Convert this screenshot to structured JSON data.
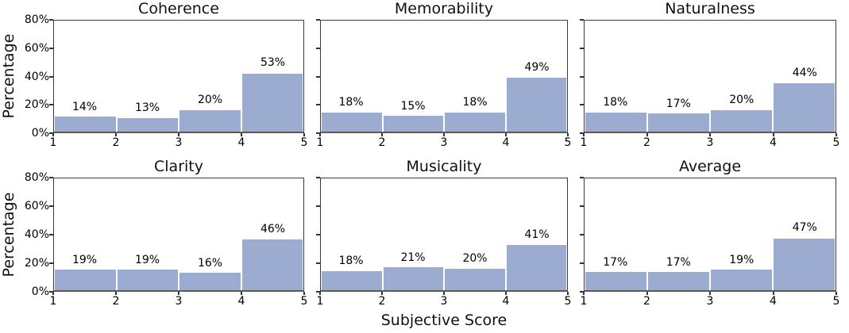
{
  "figure": {
    "xlabel": "Subjective Score",
    "ylabel": "Percentage",
    "x_tick_labels": [
      "1",
      "2",
      "3",
      "4",
      "5"
    ],
    "y_tick_labels": [
      "0%",
      "20%",
      "40%",
      "60%",
      "80%"
    ],
    "colors": {
      "bar_fill": "#9cabd0",
      "bar_edge": "#ffffff",
      "spine": "#3a3a3a",
      "bottom_spine": "#5a5a5a",
      "text": "#000000"
    }
  },
  "chart_data": [
    {
      "type": "bar",
      "title": "Coherence",
      "categories": [
        "1-2",
        "2-3",
        "3-4",
        "4-5"
      ],
      "values": [
        14,
        13,
        20,
        53
      ],
      "labels": [
        "14%",
        "13%",
        "20%",
        "53%"
      ],
      "unit": "%",
      "xlim": [
        1,
        5
      ],
      "ylim": [
        0,
        80
      ],
      "bar_axis_scale": 0.8,
      "grid": false
    },
    {
      "type": "bar",
      "title": "Memorability",
      "categories": [
        "1-2",
        "2-3",
        "3-4",
        "4-5"
      ],
      "values": [
        18,
        15,
        18,
        49
      ],
      "labels": [
        "18%",
        "15%",
        "18%",
        "49%"
      ],
      "unit": "%",
      "xlim": [
        1,
        5
      ],
      "ylim": [
        0,
        80
      ],
      "bar_axis_scale": 0.8,
      "grid": false
    },
    {
      "type": "bar",
      "title": "Naturalness",
      "categories": [
        "1-2",
        "2-3",
        "3-4",
        "4-5"
      ],
      "values": [
        18,
        17,
        20,
        44
      ],
      "labels": [
        "18%",
        "17%",
        "20%",
        "44%"
      ],
      "unit": "%",
      "xlim": [
        1,
        5
      ],
      "ylim": [
        0,
        80
      ],
      "bar_axis_scale": 0.8,
      "grid": false
    },
    {
      "type": "bar",
      "title": "Clarity",
      "categories": [
        "1-2",
        "2-3",
        "3-4",
        "4-5"
      ],
      "values": [
        19,
        19,
        16,
        46
      ],
      "labels": [
        "19%",
        "19%",
        "16%",
        "46%"
      ],
      "unit": "%",
      "xlim": [
        1,
        5
      ],
      "ylim": [
        0,
        80
      ],
      "bar_axis_scale": 0.8,
      "grid": false
    },
    {
      "type": "bar",
      "title": "Musicality",
      "categories": [
        "1-2",
        "2-3",
        "3-4",
        "4-5"
      ],
      "values": [
        18,
        21,
        20,
        41
      ],
      "labels": [
        "18%",
        "21%",
        "20%",
        "41%"
      ],
      "unit": "%",
      "xlim": [
        1,
        5
      ],
      "ylim": [
        0,
        80
      ],
      "bar_axis_scale": 0.8,
      "grid": false
    },
    {
      "type": "bar",
      "title": "Average",
      "categories": [
        "1-2",
        "2-3",
        "3-4",
        "4-5"
      ],
      "values": [
        17,
        17,
        19,
        47
      ],
      "labels": [
        "17%",
        "17%",
        "19%",
        "47%"
      ],
      "unit": "%",
      "xlim": [
        1,
        5
      ],
      "ylim": [
        0,
        80
      ],
      "bar_axis_scale": 0.8,
      "grid": false
    }
  ]
}
